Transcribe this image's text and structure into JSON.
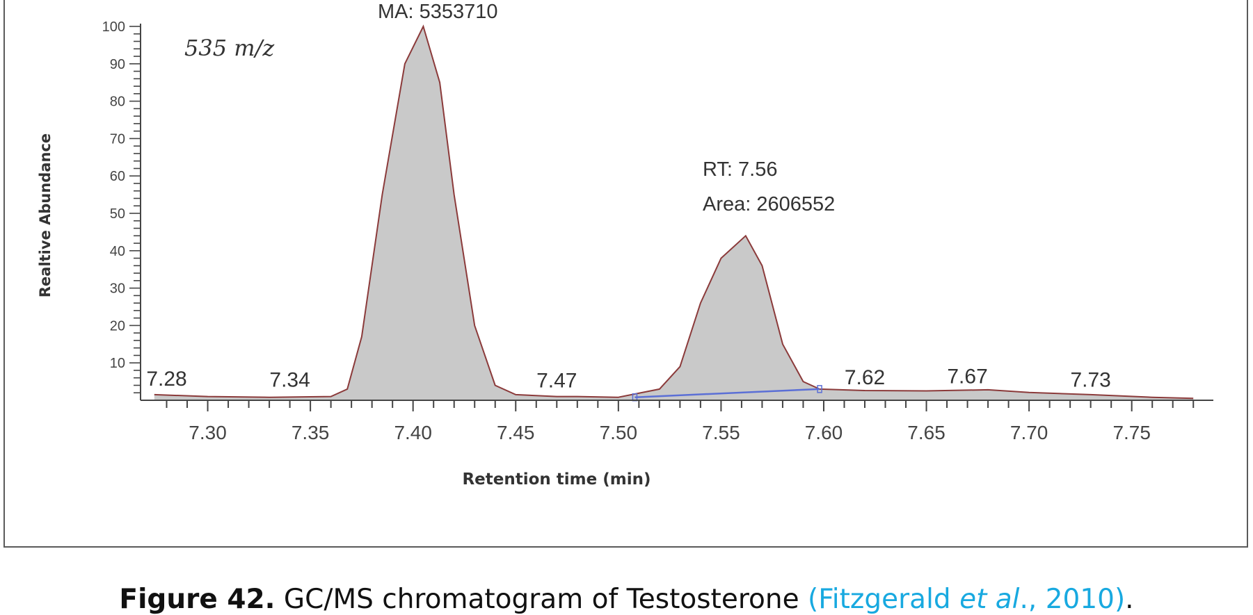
{
  "chart_data": {
    "type": "area",
    "xlabel": "Retention time (min)",
    "ylabel": "Realtive Abundance",
    "xlim": [
      7.27,
      7.785
    ],
    "ylim": [
      0,
      100
    ],
    "x_ticks": [
      "7.30",
      "7.35",
      "7.40",
      "7.45",
      "7.50",
      "7.55",
      "7.60",
      "7.65",
      "7.70",
      "7.75"
    ],
    "y_ticks": [
      "10",
      "20",
      "30",
      "40",
      "50",
      "60",
      "70",
      "80",
      "90",
      "100"
    ],
    "inner_label": "535 m/z",
    "annotations": {
      "peak1_area": "MA: 5353710",
      "peak2_rt": "RT: 7.56",
      "peak2_area": "Area: 2606552"
    },
    "rt_labels": [
      {
        "text": "7.28",
        "x": 7.28,
        "y": 2.0
      },
      {
        "text": "7.34",
        "x": 7.34,
        "y": 1.8
      },
      {
        "text": "7.47",
        "x": 7.47,
        "y": 1.6
      },
      {
        "text": "7.62",
        "x": 7.62,
        "y": 2.4
      },
      {
        "text": "7.67",
        "x": 7.67,
        "y": 2.7
      },
      {
        "text": "7.73",
        "x": 7.73,
        "y": 1.8
      }
    ],
    "series": [
      {
        "x": [
          7.274,
          7.3,
          7.33,
          7.36,
          7.368,
          7.375,
          7.385,
          7.396,
          7.405,
          7.413,
          7.42,
          7.43,
          7.44,
          7.45,
          7.47,
          7.48,
          7.5,
          7.52,
          7.53,
          7.54,
          7.55,
          7.562,
          7.57,
          7.58,
          7.59,
          7.598,
          7.62,
          7.65,
          7.68,
          7.7,
          7.73,
          7.76,
          7.78
        ],
        "y": [
          1.5,
          1.0,
          0.8,
          1.0,
          3.0,
          17,
          55,
          90,
          100,
          85,
          55,
          20,
          4,
          1.5,
          1.0,
          1.0,
          0.8,
          3.0,
          9.0,
          26,
          38,
          44,
          36,
          15,
          5,
          3.0,
          2.6,
          2.5,
          2.8,
          2.1,
          1.5,
          0.8,
          0.5
        ]
      }
    ],
    "baseline_segment": {
      "x": [
        7.508,
        7.598
      ],
      "y": [
        0.8,
        3.0
      ]
    },
    "colors": {
      "fill": "#c9c9c9",
      "line": "#8b3a3a",
      "baseline": "#5b6fd6",
      "axis": "#444444"
    }
  },
  "caption": {
    "label": "Figure 42.",
    "text": " GC/MS chromatogram of Testosterone ",
    "cite_pre": "(Fitzgerald ",
    "cite_italic": "et al",
    "cite_post": "., 2010)",
    "end": "."
  }
}
